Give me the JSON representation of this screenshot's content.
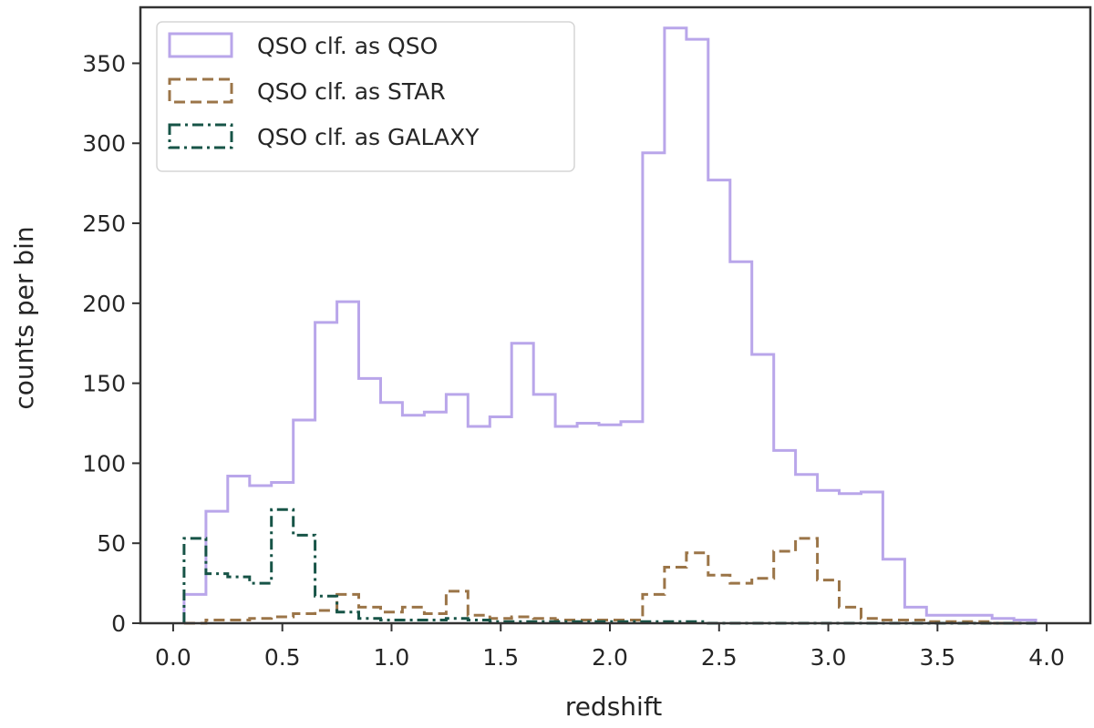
{
  "chart_data": {
    "type": "step-histogram",
    "title": "",
    "xlabel": "redshift",
    "ylabel": "counts per bin",
    "xlim": [
      -0.15,
      4.2
    ],
    "ylim": [
      0,
      385
    ],
    "grid": false,
    "legend_position": "top-left",
    "xticks": [
      {
        "value": 0.0,
        "label": "0.0"
      },
      {
        "value": 0.5,
        "label": "0.5"
      },
      {
        "value": 1.0,
        "label": "1.0"
      },
      {
        "value": 1.5,
        "label": "1.5"
      },
      {
        "value": 2.0,
        "label": "2.0"
      },
      {
        "value": 2.5,
        "label": "2.5"
      },
      {
        "value": 3.0,
        "label": "3.0"
      },
      {
        "value": 3.5,
        "label": "3.5"
      },
      {
        "value": 4.0,
        "label": "4.0"
      }
    ],
    "yticks": [
      {
        "value": 0,
        "label": "0"
      },
      {
        "value": 50,
        "label": "50"
      },
      {
        "value": 100,
        "label": "100"
      },
      {
        "value": 150,
        "label": "150"
      },
      {
        "value": 200,
        "label": "200"
      },
      {
        "value": 250,
        "label": "250"
      },
      {
        "value": 300,
        "label": "300"
      },
      {
        "value": 350,
        "label": "350"
      }
    ],
    "bin_edges": [
      0.05,
      0.15,
      0.25,
      0.35,
      0.45,
      0.55,
      0.65,
      0.75,
      0.85,
      0.95,
      1.05,
      1.15,
      1.25,
      1.35,
      1.45,
      1.55,
      1.65,
      1.75,
      1.85,
      1.95,
      2.05,
      2.15,
      2.25,
      2.35,
      2.45,
      2.55,
      2.65,
      2.75,
      2.85,
      2.95,
      3.05,
      3.15,
      3.25,
      3.35,
      3.45,
      3.55,
      3.65,
      3.75,
      3.85,
      3.95
    ],
    "series": [
      {
        "name": "QSO clf. as QSO",
        "color": "#b9a6ea",
        "dash": "solid",
        "values": [
          18,
          70,
          92,
          86,
          88,
          127,
          188,
          201,
          153,
          138,
          130,
          132,
          143,
          123,
          129,
          175,
          143,
          123,
          125,
          124,
          126,
          294,
          372,
          365,
          277,
          226,
          168,
          108,
          93,
          83,
          81,
          82,
          40,
          10,
          5,
          5,
          5,
          3,
          2
        ]
      },
      {
        "name": "QSO clf. as STAR",
        "color": "#9b7548",
        "dash": "dashed",
        "values": [
          0,
          2,
          2,
          3,
          4,
          6,
          8,
          18,
          10,
          7,
          10,
          6,
          20,
          5,
          3,
          4,
          3,
          2,
          2,
          2,
          2,
          18,
          35,
          44,
          30,
          25,
          28,
          45,
          53,
          27,
          10,
          3,
          2,
          2,
          1,
          1,
          1,
          0,
          0
        ]
      },
      {
        "name": "QSO clf. as GALAXY",
        "color": "#175447",
        "dash": "dashdot",
        "values": [
          53,
          31,
          29,
          25,
          71,
          55,
          17,
          7,
          3,
          2,
          2,
          2,
          3,
          2,
          1,
          1,
          1,
          1,
          1,
          1,
          1,
          1,
          1,
          1,
          0,
          0,
          0,
          0,
          0,
          0,
          0,
          0,
          0,
          0,
          0,
          0,
          0,
          0,
          0
        ]
      }
    ]
  }
}
